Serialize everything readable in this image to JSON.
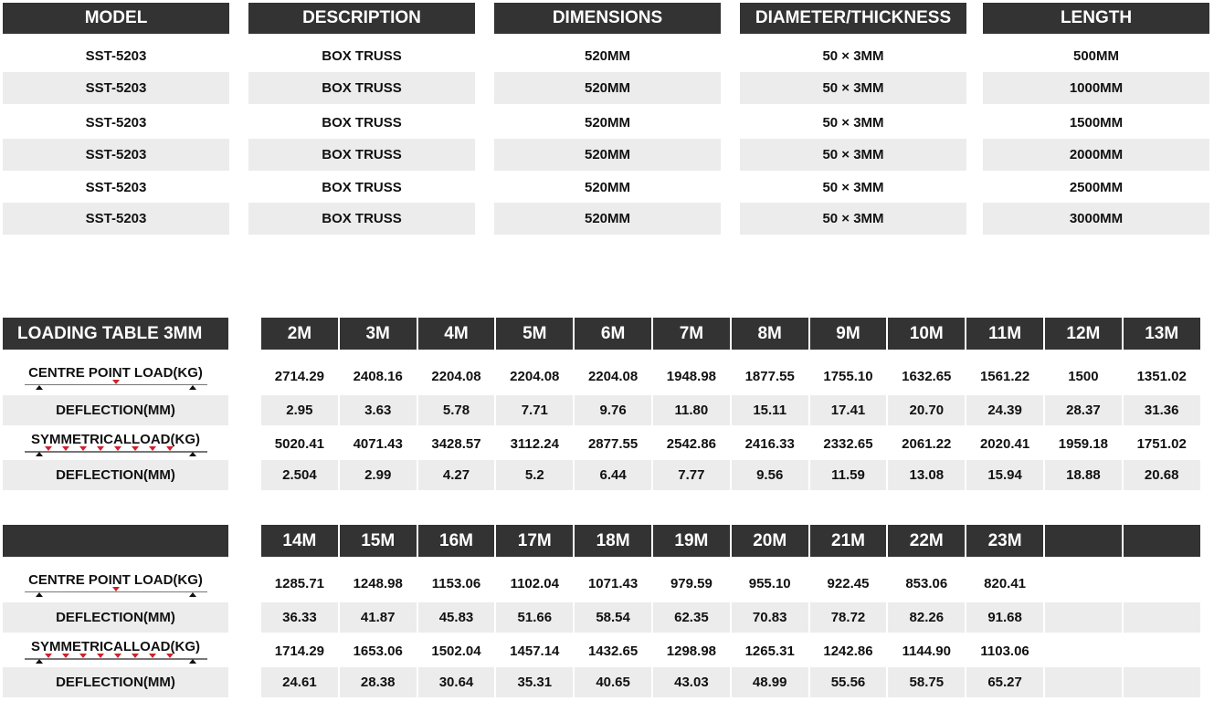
{
  "spec_table": {
    "headers": [
      "MODEL",
      "DESCRIPTION",
      "DIMENSIONS",
      "DIAMETER/THICKNESS",
      "LENGTH"
    ],
    "rows": [
      [
        "SST-5203",
        "BOX TRUSS",
        "520MM",
        "50 × 3MM",
        "500MM"
      ],
      [
        "SST-5203",
        "BOX TRUSS",
        "520MM",
        "50 × 3MM",
        "1000MM"
      ],
      [
        "SST-5203",
        "BOX TRUSS",
        "520MM",
        "50 × 3MM",
        "1500MM"
      ],
      [
        "SST-5203",
        "BOX TRUSS",
        "520MM",
        "50 × 3MM",
        "2000MM"
      ],
      [
        "SST-5203",
        "BOX TRUSS",
        "520MM",
        "50 × 3MM",
        "2500MM"
      ],
      [
        "SST-5203",
        "BOX TRUSS",
        "520MM",
        "50 × 3MM",
        "3000MM"
      ]
    ]
  },
  "loading_tables": [
    {
      "title": "LOADING TABLE 3MM",
      "spans": [
        "2M",
        "3M",
        "4M",
        "5M",
        "6M",
        "7M",
        "8M",
        "9M",
        "10M",
        "11M",
        "12M",
        "13M"
      ],
      "rows": [
        {
          "label": "CENTRE POINT LOAD(KG)",
          "diagram": "centre-point",
          "values": [
            "2714.29",
            "2408.16",
            "2204.08",
            "2204.08",
            "2204.08",
            "1948.98",
            "1877.55",
            "1755.10",
            "1632.65",
            "1561.22",
            "1500",
            "1351.02"
          ]
        },
        {
          "label": "DEFLECTION(MM)",
          "values": [
            "2.95",
            "3.63",
            "5.78",
            "7.71",
            "9.76",
            "11.80",
            "15.11",
            "17.41",
            "20.70",
            "24.39",
            "28.37",
            "31.36"
          ]
        },
        {
          "label": "SYMMETRICALLOAD(KG)",
          "diagram": "symmetrical",
          "values": [
            "5020.41",
            "4071.43",
            "3428.57",
            "3112.24",
            "2877.55",
            "2542.86",
            "2416.33",
            "2332.65",
            "2061.22",
            "2020.41",
            "1959.18",
            "1751.02"
          ]
        },
        {
          "label": "DEFLECTION(MM)",
          "values": [
            "2.504",
            "2.99",
            "4.27",
            "5.2",
            "6.44",
            "7.77",
            "9.56",
            "11.59",
            "13.08",
            "15.94",
            "18.88",
            "20.68"
          ]
        }
      ]
    },
    {
      "title": "",
      "spans": [
        "14M",
        "15M",
        "16M",
        "17M",
        "18M",
        "19M",
        "20M",
        "21M",
        "22M",
        "23M",
        "",
        ""
      ],
      "rows": [
        {
          "label": "CENTRE POINT LOAD(KG)",
          "diagram": "centre-point",
          "values": [
            "1285.71",
            "1248.98",
            "1153.06",
            "1102.04",
            "1071.43",
            "979.59",
            "955.10",
            "922.45",
            "853.06",
            "820.41",
            "",
            ""
          ]
        },
        {
          "label": "DEFLECTION(MM)",
          "values": [
            "36.33",
            "41.87",
            "45.83",
            "51.66",
            "58.54",
            "62.35",
            "70.83",
            "78.72",
            "82.26",
            "91.68",
            "",
            ""
          ]
        },
        {
          "label": "SYMMETRICALLOAD(KG)",
          "diagram": "symmetrical",
          "values": [
            "1714.29",
            "1653.06",
            "1502.04",
            "1457.14",
            "1432.65",
            "1298.98",
            "1265.31",
            "1242.86",
            "1144.90",
            "1103.06",
            "",
            ""
          ]
        },
        {
          "label": "DEFLECTION(MM)",
          "values": [
            "24.61",
            "28.38",
            "30.64",
            "35.31",
            "40.65",
            "43.03",
            "48.99",
            "55.56",
            "58.75",
            "65.27",
            "",
            ""
          ]
        }
      ]
    }
  ],
  "colors": {
    "header_bg": "#333333",
    "stripe_bg": "#ececec",
    "load_marker": "#d0202a"
  }
}
